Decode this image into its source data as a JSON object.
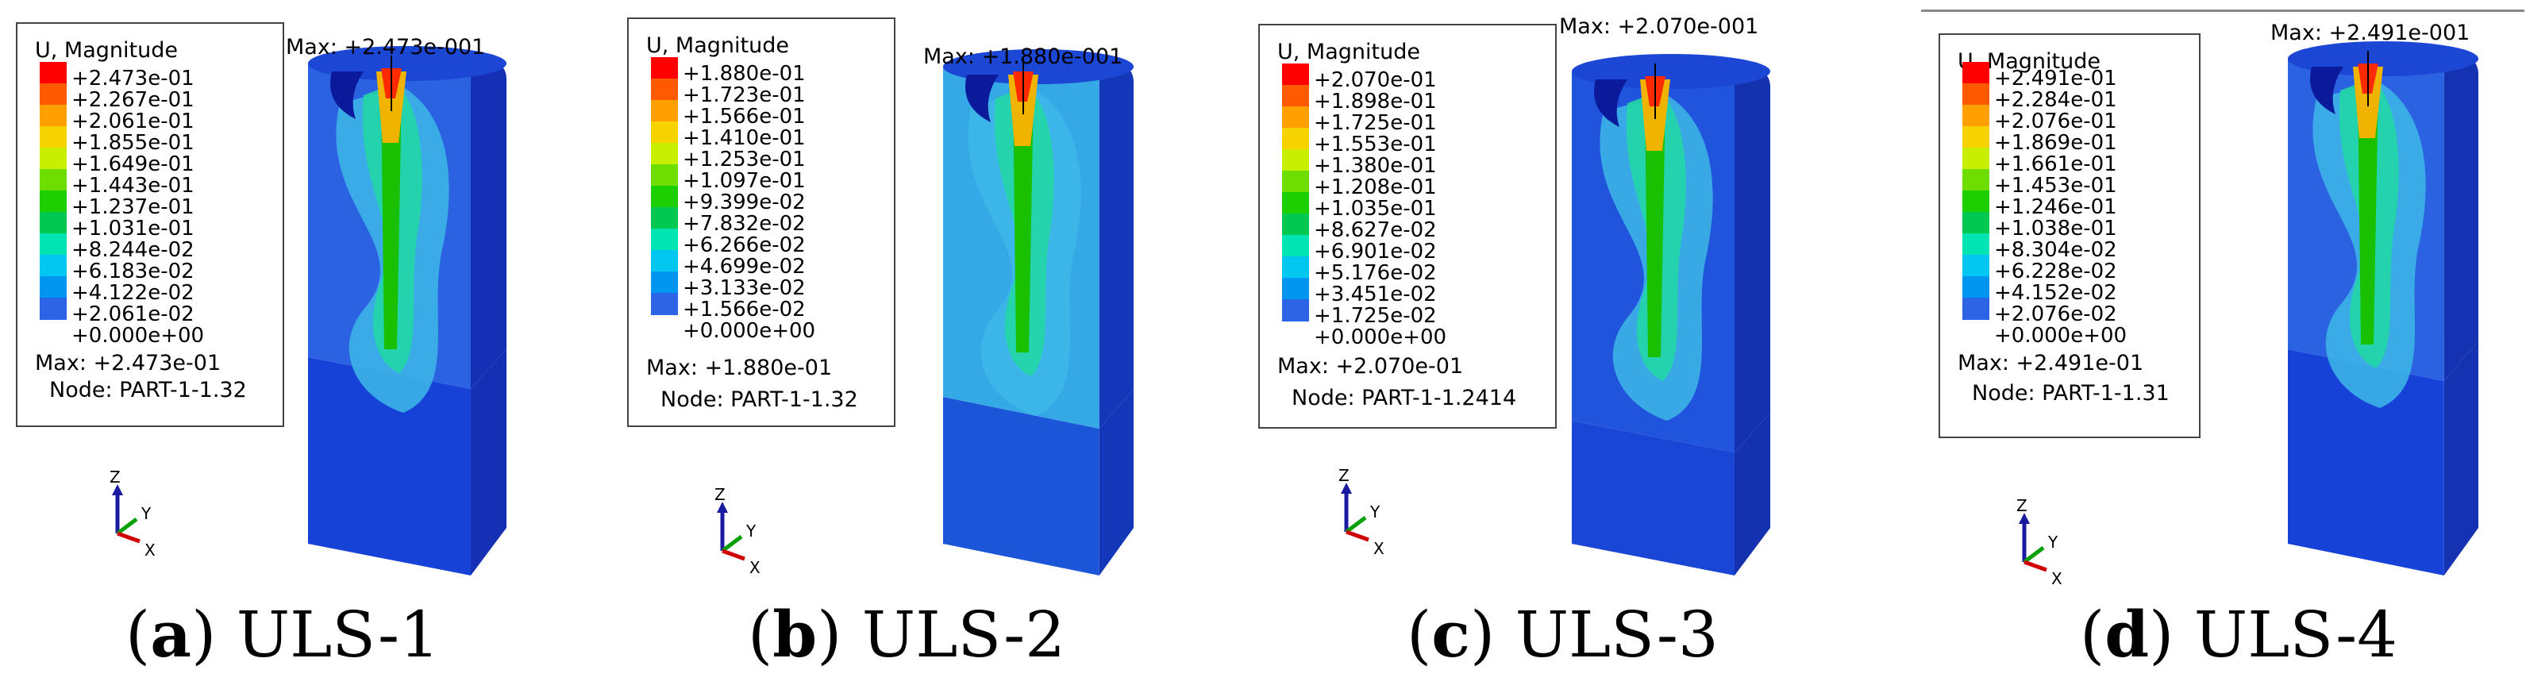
{
  "legend_colors": [
    "#ff0000",
    "#ff5a00",
    "#ffa000",
    "#f5d200",
    "#c8ee00",
    "#6edd00",
    "#1ecf00",
    "#00c850",
    "#00e4b4",
    "#00c6f0",
    "#0096f0",
    "#2d64e6",
    "#0000d8"
  ],
  "panels": [
    {
      "id": "a",
      "legend_title": "U, Magnitude",
      "ticks": [
        "+2.473e-01",
        "+2.267e-01",
        "+2.061e-01",
        "+1.855e-01",
        "+1.649e-01",
        "+1.443e-01",
        "+1.237e-01",
        "+1.031e-01",
        "+8.244e-02",
        "+6.183e-02",
        "+4.122e-02",
        "+2.061e-02",
        "+0.000e+00"
      ],
      "max_line": "Max: +2.473e-01",
      "node_line": "Node: PART-1-1.32",
      "max_label": "Max: +2.473e-001",
      "caption_letter": "a",
      "caption_rest": "ULS-1",
      "axis_z": "Z",
      "axis_y": "Y",
      "axis_x": "X"
    },
    {
      "id": "b",
      "legend_title": "U, Magnitude",
      "ticks": [
        "+1.880e-01",
        "+1.723e-01",
        "+1.566e-01",
        "+1.410e-01",
        "+1.253e-01",
        "+1.097e-01",
        "+9.399e-02",
        "+7.832e-02",
        "+6.266e-02",
        "+4.699e-02",
        "+3.133e-02",
        "+1.566e-02",
        "+0.000e+00"
      ],
      "max_line": "Max: +1.880e-01",
      "node_line": "Node: PART-1-1.32",
      "max_label": "Max: +1.880e-001",
      "caption_letter": "b",
      "caption_rest": "ULS-2",
      "axis_z": "Z",
      "axis_y": "Y",
      "axis_x": "X"
    },
    {
      "id": "c",
      "legend_title": "U, Magnitude",
      "ticks": [
        "+2.070e-01",
        "+1.898e-01",
        "+1.725e-01",
        "+1.553e-01",
        "+1.380e-01",
        "+1.208e-01",
        "+1.035e-01",
        "+8.627e-02",
        "+6.901e-02",
        "+5.176e-02",
        "+3.451e-02",
        "+1.725e-02",
        "+0.000e+00"
      ],
      "max_line": "Max: +2.070e-01",
      "node_line": "Node: PART-1-1.2414",
      "max_label": "Max: +2.070e-001",
      "caption_letter": "c",
      "caption_rest": "ULS-3",
      "axis_z": "Z",
      "axis_y": "Y",
      "axis_x": "X"
    },
    {
      "id": "d",
      "legend_title": "U, Magnitude",
      "ticks": [
        "+2.491e-01",
        "+2.284e-01",
        "+2.076e-01",
        "+1.869e-01",
        "+1.661e-01",
        "+1.453e-01",
        "+1.246e-01",
        "+1.038e-01",
        "+8.304e-02",
        "+6.228e-02",
        "+4.152e-02",
        "+2.076e-02",
        "+0.000e+00"
      ],
      "max_line": "Max: +2.491e-01",
      "node_line": "Node: PART-1-1.31",
      "max_label": "Max: +2.491e-001",
      "caption_letter": "d",
      "caption_rest": "ULS-4",
      "axis_z": "Z",
      "axis_y": "Y",
      "axis_x": "X"
    }
  ]
}
